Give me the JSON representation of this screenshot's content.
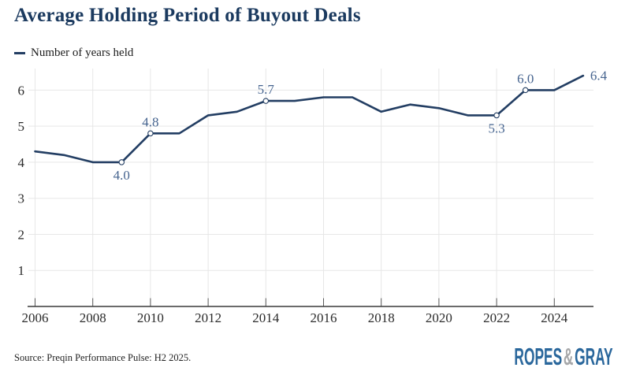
{
  "header": {
    "title": "Average Holding Period of Buyout Deals"
  },
  "legend": {
    "label": "Number of years held"
  },
  "chart_data": {
    "type": "line",
    "title": "Average Holding Period of Buyout Deals",
    "series_name": "Number of years held",
    "x": [
      2006,
      2007,
      2008,
      2009,
      2010,
      2011,
      2012,
      2013,
      2014,
      2015,
      2016,
      2017,
      2018,
      2019,
      2020,
      2021,
      2022,
      2023,
      2024,
      2025
    ],
    "values": [
      4.3,
      4.2,
      4.0,
      4.0,
      4.8,
      4.8,
      5.3,
      5.4,
      5.7,
      5.7,
      5.8,
      5.8,
      5.4,
      5.6,
      5.5,
      5.3,
      5.3,
      6.0,
      6.0,
      6.4
    ],
    "labeled_points": [
      {
        "year": 2009,
        "value": 4.0,
        "label": "4.0",
        "position": "below",
        "marker": true
      },
      {
        "year": 2010,
        "value": 4.8,
        "label": "4.8",
        "position": "above",
        "marker": true
      },
      {
        "year": 2014,
        "value": 5.7,
        "label": "5.7",
        "position": "above",
        "marker": true
      },
      {
        "year": 2022,
        "value": 5.3,
        "label": "5.3",
        "position": "below",
        "marker": true
      },
      {
        "year": 2023,
        "value": 6.0,
        "label": "6.0",
        "position": "above",
        "marker": true
      },
      {
        "year": 2025,
        "value": 6.4,
        "label": "6.4",
        "position": "right",
        "marker": false
      }
    ],
    "x_ticks": [
      2006,
      2008,
      2010,
      2012,
      2014,
      2016,
      2018,
      2020,
      2022,
      2024
    ],
    "y_ticks": [
      1,
      2,
      3,
      4,
      5,
      6
    ],
    "ylim": [
      0,
      6.6
    ],
    "grid": true,
    "legend_position": "top-left"
  },
  "footer": {
    "source": "Source: Preqin Performance Pulse: H2 2025.",
    "logo": {
      "ropes": "ROPES",
      "amp": "&",
      "gray": "GRAY"
    }
  },
  "colors": {
    "title_navy": "#1B3A5F",
    "line_navy": "#233E63",
    "data_label_blue": "#46648F",
    "axis_text": "#2B2B2B",
    "grid_line": "#E7E7E7",
    "axis_line": "#3A3A3A",
    "tick_mark": "#5A5A5A",
    "source_text": "#222222",
    "logo_blue": "#2A679C",
    "logo_gray": "#A6A7A9",
    "background": "#FFFFFF"
  }
}
